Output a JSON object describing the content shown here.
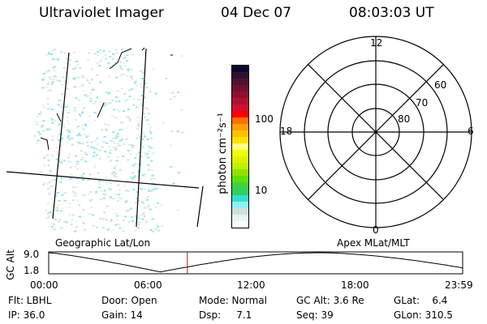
{
  "header": {
    "instrument": "Ultraviolet Imager",
    "date": "04 Dec 07",
    "time": "08:03:03 UT"
  },
  "colorbar": {
    "label": "photon cm⁻²s⁻¹",
    "ticks": [
      "100",
      "10"
    ],
    "colors": [
      "#0a0a30",
      "#301030",
      "#501030",
      "#701030",
      "#901030",
      "#b01030",
      "#d01030",
      "#ff0000",
      "#ff7000",
      "#ffa000",
      "#ffc000",
      "#ffe000",
      "#ffff80",
      "#f0ff00",
      "#e0f000",
      "#c0f000",
      "#90e000",
      "#60e000",
      "#40d040",
      "#30d060",
      "#30e0d0",
      "#90f0f0",
      "#d0e0e0",
      "#e8f4ee",
      "#f8fcfc"
    ]
  },
  "polar": {
    "mlt_labels": {
      "top": "12",
      "bottom": "0",
      "left": "18",
      "right": "6"
    },
    "lat_labels": [
      "60",
      "70",
      "80"
    ]
  },
  "timeline": {
    "left_label": "Geographic Lat/Lon",
    "right_label": "Apex MLat/MLT",
    "ylabel": "GC Alt",
    "y_max": "9.0",
    "y_min": "1.8",
    "x_ticks": [
      "00:00",
      "06:00",
      "12:00",
      "18:00",
      "23:59"
    ],
    "current_time_fraction": 0.335
  },
  "info": {
    "row1": [
      "Flt: LBHL",
      "Door: Open",
      "Mode: Normal",
      "GC Alt: 3.6 Re",
      "GLat:    6.4"
    ],
    "row2": [
      "IP: 36.0",
      "Gain: 14",
      "Dsp:     7.1",
      "Seq: 39",
      "GLon: 310.5"
    ]
  }
}
